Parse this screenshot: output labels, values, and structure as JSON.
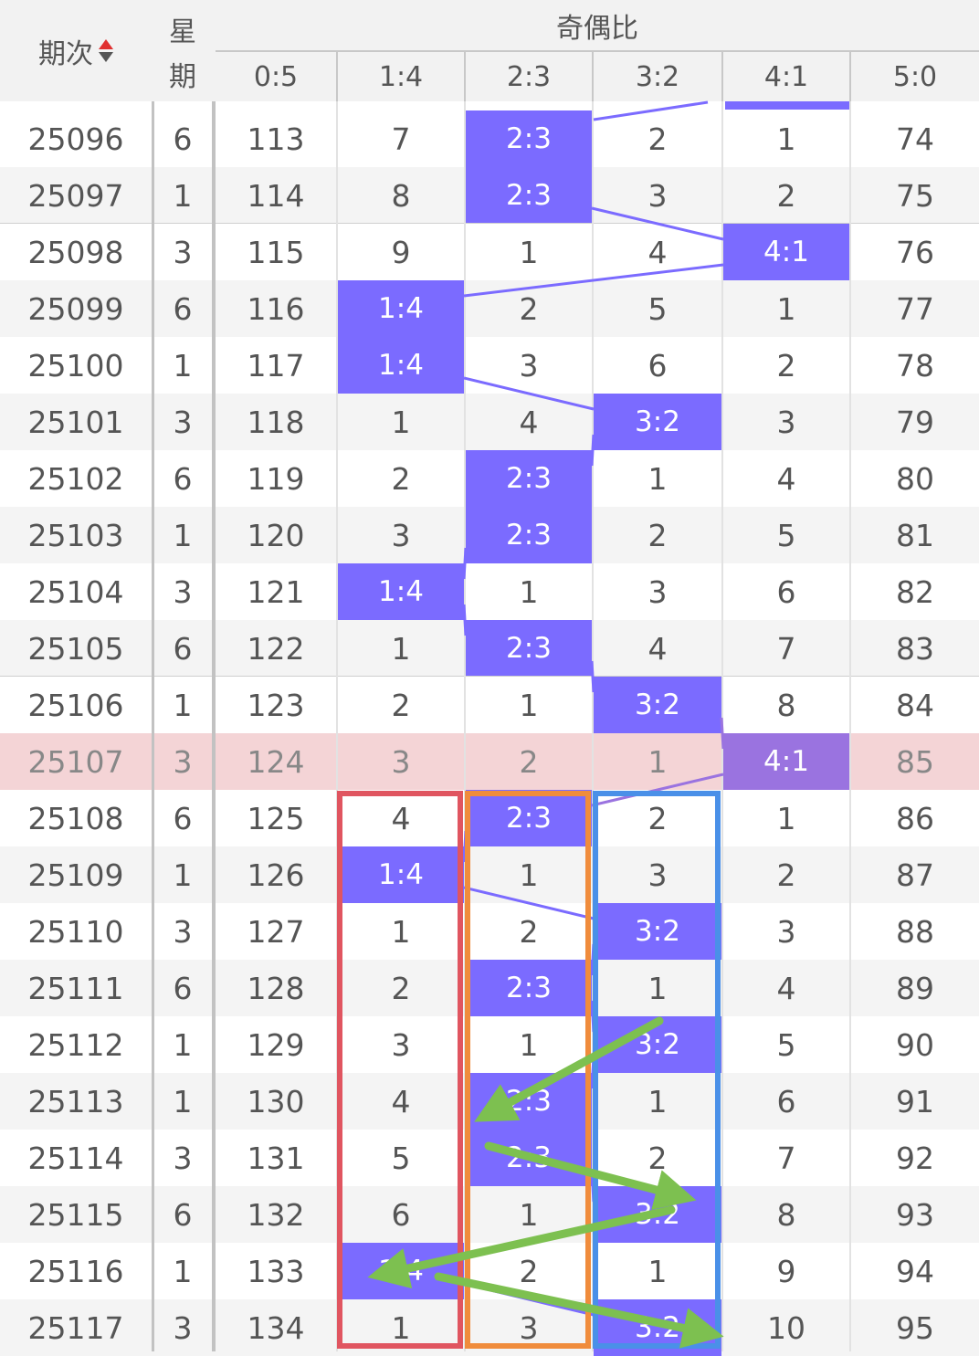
{
  "header": {
    "col_issue": "期次",
    "col_week_top": "星",
    "col_week_bottom": "期",
    "group_title": "奇偶比",
    "ratios": [
      "0:5",
      "1:4",
      "2:3",
      "3:2",
      "4:1",
      "5:0"
    ]
  },
  "colors": {
    "hit": "#7b6bff",
    "highlight_row": "#f4d4d6",
    "highlight_hit": "#9a73e0",
    "box_red": "#e05560",
    "box_orange": "#f08c3c",
    "box_blue": "#4a90e8",
    "arrow_green": "#7dc050",
    "trend_line": "#7b6bff"
  },
  "rows": [
    {
      "issue": "25096",
      "week": "6",
      "cells": [
        "113",
        "7",
        "2:3",
        "2",
        "1",
        "74"
      ],
      "hit": 2
    },
    {
      "issue": "25097",
      "week": "1",
      "cells": [
        "114",
        "8",
        "2:3",
        "3",
        "2",
        "75"
      ],
      "hit": 2
    },
    {
      "issue": "25098",
      "week": "3",
      "cells": [
        "115",
        "9",
        "1",
        "4",
        "4:1",
        "76"
      ],
      "hit": 4
    },
    {
      "issue": "25099",
      "week": "6",
      "cells": [
        "116",
        "1:4",
        "2",
        "5",
        "1",
        "77"
      ],
      "hit": 1
    },
    {
      "issue": "25100",
      "week": "1",
      "cells": [
        "117",
        "1:4",
        "3",
        "6",
        "2",
        "78"
      ],
      "hit": 1
    },
    {
      "issue": "25101",
      "week": "3",
      "cells": [
        "118",
        "1",
        "4",
        "3:2",
        "3",
        "79"
      ],
      "hit": 3
    },
    {
      "issue": "25102",
      "week": "6",
      "cells": [
        "119",
        "2",
        "2:3",
        "1",
        "4",
        "80"
      ],
      "hit": 2
    },
    {
      "issue": "25103",
      "week": "1",
      "cells": [
        "120",
        "3",
        "2:3",
        "2",
        "5",
        "81"
      ],
      "hit": 2
    },
    {
      "issue": "25104",
      "week": "3",
      "cells": [
        "121",
        "1:4",
        "1",
        "3",
        "6",
        "82"
      ],
      "hit": 1
    },
    {
      "issue": "25105",
      "week": "6",
      "cells": [
        "122",
        "1",
        "2:3",
        "4",
        "7",
        "83"
      ],
      "hit": 2
    },
    {
      "issue": "25106",
      "week": "1",
      "cells": [
        "123",
        "2",
        "1",
        "3:2",
        "8",
        "84"
      ],
      "hit": 3
    },
    {
      "issue": "25107",
      "week": "3",
      "cells": [
        "124",
        "3",
        "2",
        "1",
        "4:1",
        "85"
      ],
      "hit": 4,
      "highlight": true
    },
    {
      "issue": "25108",
      "week": "6",
      "cells": [
        "125",
        "4",
        "2:3",
        "2",
        "1",
        "86"
      ],
      "hit": 2
    },
    {
      "issue": "25109",
      "week": "1",
      "cells": [
        "126",
        "1:4",
        "1",
        "3",
        "2",
        "87"
      ],
      "hit": 1
    },
    {
      "issue": "25110",
      "week": "3",
      "cells": [
        "127",
        "1",
        "2",
        "3:2",
        "3",
        "88"
      ],
      "hit": 3
    },
    {
      "issue": "25111",
      "week": "6",
      "cells": [
        "128",
        "2",
        "2:3",
        "1",
        "4",
        "89"
      ],
      "hit": 2
    },
    {
      "issue": "25112",
      "week": "1",
      "cells": [
        "129",
        "3",
        "1",
        "3:2",
        "5",
        "90"
      ],
      "hit": 3
    },
    {
      "issue": "25113",
      "week": "1",
      "cells": [
        "130",
        "4",
        "2:3",
        "1",
        "6",
        "91"
      ],
      "hit": 2
    },
    {
      "issue": "25114",
      "week": "3",
      "cells": [
        "131",
        "5",
        "2:3",
        "2",
        "7",
        "92"
      ],
      "hit": 2
    },
    {
      "issue": "25115",
      "week": "6",
      "cells": [
        "132",
        "6",
        "1",
        "3:2",
        "8",
        "93"
      ],
      "hit": 3
    },
    {
      "issue": "25116",
      "week": "1",
      "cells": [
        "133",
        "1:4",
        "2",
        "1",
        "9",
        "94"
      ],
      "hit": 1
    },
    {
      "issue": "25117",
      "week": "3",
      "cells": [
        "134",
        "1",
        "3",
        "3:2",
        "10",
        "95"
      ],
      "hit": 3
    }
  ]
}
